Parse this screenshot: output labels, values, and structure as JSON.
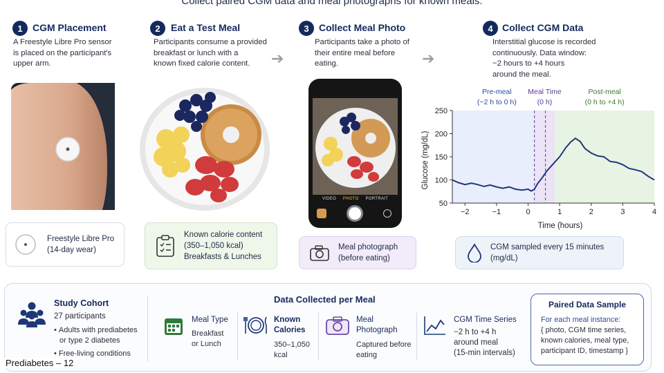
{
  "title": "Collect paired CGM data and meal photographs for known meals.",
  "steps": [
    {
      "number": "1",
      "title": "CGM Placement",
      "desc": [
        "A Freestyle Libre Pro sensor",
        "is placed on the participant's",
        "upper arm."
      ]
    },
    {
      "number": "2",
      "title": "Eat a Test Meal",
      "desc": [
        "Participants consume a provided",
        "breakfast or lunch with a",
        "known fixed calorie content."
      ]
    },
    {
      "number": "3",
      "title": "Collect Meal Photo",
      "desc": [
        "Participants take a photo of",
        "their entire meal before",
        "eating."
      ]
    },
    {
      "number": "4",
      "title": "Collect CGM Data",
      "desc": [
        "Interstitial glucose is recorded",
        "continuously. Data window:",
        "−2 hours to +4 hours",
        "around the meal."
      ]
    }
  ],
  "cards": {
    "sensor": {
      "line1": "Freestyle Libre Pro",
      "line2": "(14-day wear)"
    },
    "calorie": {
      "line1": "Known calorie content",
      "line2": "(350–1,050 kcal)",
      "line3": "Breakfasts & Lunches"
    },
    "photo": {
      "line1": "Meal photograph",
      "line2": "(before eating)"
    },
    "cgm": {
      "line1": "CGM sampled every 15 minutes",
      "line2": "(mg/dL)"
    }
  },
  "phone": {
    "modes": [
      "VIDEO",
      "PHOTO",
      "PORTRAIT"
    ],
    "active_mode": "PHOTO"
  },
  "chart_data": {
    "type": "line",
    "xlabel": "Time (hours)",
    "ylabel": "Glucose (mg/dL)",
    "xlim": [
      -2.4,
      4
    ],
    "ylim": [
      50,
      250
    ],
    "x_ticks": [
      -2,
      -1,
      0,
      1,
      2,
      3,
      4
    ],
    "y_ticks": [
      50,
      100,
      150,
      200,
      250
    ],
    "regions": [
      {
        "label1": "Pre-meal",
        "label2": "(−2 h to 0 h)",
        "from": -2.4,
        "to": 0.2,
        "color": "#e8eefb",
        "text_color": "#2a4a9a"
      },
      {
        "label1": "Meal Time",
        "label2": "(0 h)",
        "from": 0.2,
        "to": 0.85,
        "color": "#ece3f7",
        "text_color": "#5a3a9a"
      },
      {
        "label1": "Post-meal",
        "label2": "(0 h to +4 h)",
        "from": 0.85,
        "to": 4,
        "color": "#e8f4e3",
        "text_color": "#3b7a2f"
      }
    ],
    "meal_lines": [
      0.2,
      0.55
    ],
    "series": [
      {
        "color": "#1d3778",
        "x": [
          -2.4,
          -2.2,
          -2.0,
          -1.8,
          -1.6,
          -1.4,
          -1.2,
          -1.0,
          -0.8,
          -0.6,
          -0.4,
          -0.2,
          0.0,
          0.1,
          0.2,
          0.3,
          0.45,
          0.6,
          0.8,
          1.0,
          1.2,
          1.35,
          1.5,
          1.65,
          1.8,
          2.0,
          2.2,
          2.4,
          2.6,
          2.8,
          3.0,
          3.2,
          3.4,
          3.6,
          3.8,
          4.0
        ],
        "values": [
          100,
          94,
          90,
          93,
          90,
          86,
          89,
          85,
          82,
          85,
          80,
          78,
          80,
          76,
          80,
          92,
          105,
          120,
          135,
          150,
          170,
          182,
          190,
          183,
          168,
          158,
          152,
          150,
          140,
          138,
          133,
          125,
          122,
          118,
          108,
          100
        ]
      }
    ]
  },
  "bottom": {
    "cohort": {
      "title": "Study Cohort",
      "count": "27 participants",
      "bullets": [
        "Adults with prediabetes",
        "or type 2 diabetes",
        "Free-living conditions"
      ]
    },
    "collected_title": "Data Collected per Meal",
    "items": [
      {
        "head": [
          "Meal Type"
        ],
        "body": [
          "Breakfast",
          "or Lunch"
        ]
      },
      {
        "head": [
          "Known",
          "Calories"
        ],
        "body": [
          "350–1,050",
          "kcal"
        ]
      },
      {
        "head": [
          "Meal",
          "Photograph"
        ],
        "body": [
          "Captured before",
          "eating"
        ]
      },
      {
        "head": [
          "CGM Time Series"
        ],
        "body": [
          "−2 h to +4 h",
          "around meal",
          "(15-min intervals)"
        ]
      }
    ],
    "paired": {
      "title": "Paired Data Sample",
      "lines": [
        "For each meal instance:",
        "{ photo, CGM time series,",
        "known calories, meal type,",
        "participant ID, timestamp }"
      ]
    }
  },
  "footer_label": "Prediabetes – 12"
}
